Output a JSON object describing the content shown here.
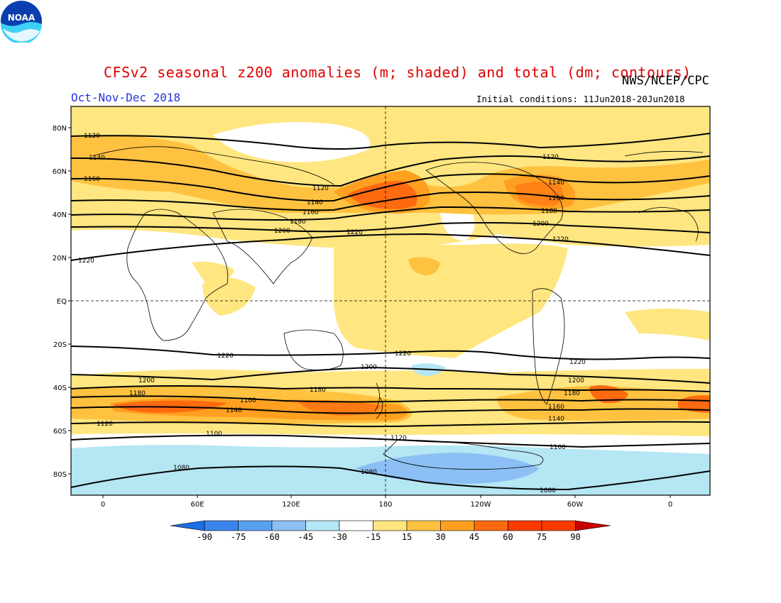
{
  "header": {
    "title": "CFSv2 seasonal z200 anomalies (m; shaded) and total (dm; contours)",
    "period": "Oct-Nov-Dec 2018",
    "agency": "NWS/NCEP/CPC",
    "initial_conditions": "Initial conditions: 11Jun2018-20Jun2018",
    "logo_text": "NOAA"
  },
  "map": {
    "lat_labels": [
      "80N",
      "60N",
      "40N",
      "20N",
      "EQ",
      "20S",
      "40S",
      "60S",
      "80S"
    ],
    "lon_labels": [
      "0",
      "60E",
      "120E",
      "180",
      "120W",
      "60W",
      "0"
    ],
    "contour_labels": [
      "1120",
      "1140",
      "1160",
      "1180",
      "1200",
      "1220",
      "1100",
      "1080"
    ],
    "contour_label_positions_text": [
      "1120",
      "1140",
      "1160",
      "1220",
      "1120",
      "1140",
      "1160",
      "1180",
      "1200",
      "1220",
      "1120",
      "1140",
      "1160",
      "1180",
      "1200",
      "1220",
      "1220",
      "1200",
      "1180",
      "1160",
      "1140",
      "1120",
      "1100",
      "1080",
      "1220",
      "1200",
      "1180",
      "1160",
      "1140",
      "1120",
      "1100",
      "1080",
      "1200",
      "1180",
      "1220",
      "1080"
    ]
  },
  "colorbar": {
    "ticks": [
      "-90",
      "-75",
      "-60",
      "-45",
      "-30",
      "-15",
      "15",
      "30",
      "45",
      "60",
      "75",
      "90"
    ],
    "colors": [
      "#1e6ee6",
      "#3a86ee",
      "#5aa0f0",
      "#8cc0f4",
      "#b4e6f4",
      "#ffffff",
      "#ffe680",
      "#ffc240",
      "#ffa020",
      "#ff6a10",
      "#ff3a00",
      "#c80000"
    ]
  }
}
